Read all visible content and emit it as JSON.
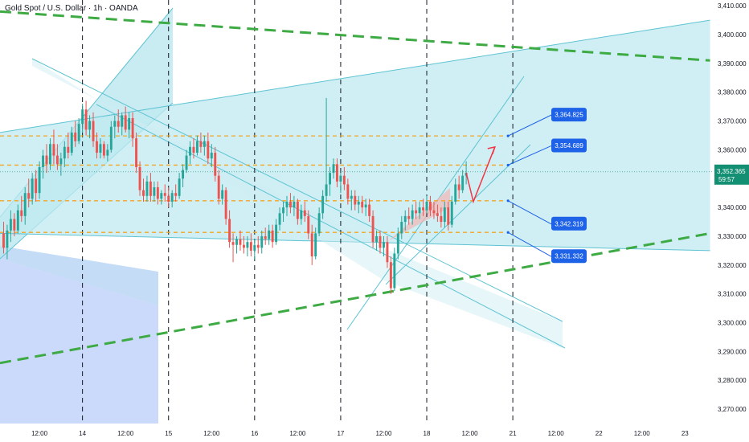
{
  "header": {
    "title": "Gold Spot / U.S. Dollar · 1h · OANDA"
  },
  "chart_data": {
    "type": "candlestick",
    "ylim": [
      3265,
      3412
    ],
    "y_ticks": [
      3270,
      3280,
      3290,
      3300,
      3310,
      3320,
      3330,
      3340,
      3350,
      3360,
      3370,
      3380,
      3390,
      3400,
      3410
    ],
    "y_tick_labels": [
      "3,270.000",
      "3,280.000",
      "3,290.000",
      "3,300.000",
      "3,310.000",
      "3,320.000",
      "3,330.000",
      "3,340.000",
      "3,350.000",
      "3,360.000",
      "3,370.000",
      "3,380.000",
      "3,390.000",
      "3,400.000",
      "3,410.000"
    ],
    "x_ticks": [
      {
        "t": -12,
        "label": "12:00"
      },
      {
        "t": 0,
        "label": "14"
      },
      {
        "t": 12,
        "label": "12:00"
      },
      {
        "t": 24,
        "label": "15"
      },
      {
        "t": 36,
        "label": "12:00"
      },
      {
        "t": 48,
        "label": "16"
      },
      {
        "t": 60,
        "label": "12:00"
      },
      {
        "t": 72,
        "label": "17"
      },
      {
        "t": 84,
        "label": "12:00"
      },
      {
        "t": 96,
        "label": "18"
      },
      {
        "t": 108,
        "label": "12:00"
      },
      {
        "t": 120,
        "label": "21"
      },
      {
        "t": 132,
        "label": "12:00"
      },
      {
        "t": 144,
        "label": "22"
      },
      {
        "t": 156,
        "label": "12:00"
      },
      {
        "t": 168,
        "label": "23"
      }
    ],
    "xlim": [
      -23,
      176
    ],
    "current_price": {
      "value": 3352.365,
      "label": "3,352.365",
      "countdown": "59:57"
    },
    "levels": [
      {
        "value": 3364.825,
        "label": "3,364.825"
      },
      {
        "value": 3354.689,
        "label": "3,354.689"
      },
      {
        "value": 3342.319,
        "label": "3,342.319"
      },
      {
        "value": 3331.332,
        "label": "3,331.332"
      }
    ],
    "session_lines_t": [
      0,
      24,
      48,
      72,
      96,
      120
    ],
    "candles": [
      {
        "t": -22,
        "o": 3331,
        "h": 3335,
        "l": 3324,
        "c": 3326
      },
      {
        "t": -21,
        "o": 3326,
        "h": 3334,
        "l": 3322,
        "c": 3332
      },
      {
        "t": -20,
        "o": 3332,
        "h": 3339,
        "l": 3328,
        "c": 3336
      },
      {
        "t": -19,
        "o": 3336,
        "h": 3338,
        "l": 3330,
        "c": 3332
      },
      {
        "t": -18,
        "o": 3332,
        "h": 3341,
        "l": 3331,
        "c": 3339
      },
      {
        "t": -17,
        "o": 3339,
        "h": 3344,
        "l": 3335,
        "c": 3337
      },
      {
        "t": -16,
        "o": 3337,
        "h": 3347,
        "l": 3334,
        "c": 3345
      },
      {
        "t": -15,
        "o": 3345,
        "h": 3350,
        "l": 3340,
        "c": 3343
      },
      {
        "t": -14,
        "o": 3343,
        "h": 3352,
        "l": 3341,
        "c": 3350
      },
      {
        "t": -13,
        "o": 3350,
        "h": 3353,
        "l": 3342,
        "c": 3345
      },
      {
        "t": -12,
        "o": 3345,
        "h": 3356,
        "l": 3343,
        "c": 3354
      },
      {
        "t": -11,
        "o": 3354,
        "h": 3360,
        "l": 3350,
        "c": 3358
      },
      {
        "t": -10,
        "o": 3358,
        "h": 3362,
        "l": 3352,
        "c": 3355
      },
      {
        "t": -9,
        "o": 3355,
        "h": 3364,
        "l": 3353,
        "c": 3362
      },
      {
        "t": -8,
        "o": 3362,
        "h": 3367,
        "l": 3355,
        "c": 3358
      },
      {
        "t": -7,
        "o": 3358,
        "h": 3362,
        "l": 3353,
        "c": 3355
      },
      {
        "t": -6,
        "o": 3355,
        "h": 3359,
        "l": 3351,
        "c": 3357
      },
      {
        "t": -5,
        "o": 3357,
        "h": 3363,
        "l": 3354,
        "c": 3361
      },
      {
        "t": -4,
        "o": 3361,
        "h": 3366,
        "l": 3357,
        "c": 3359
      },
      {
        "t": -3,
        "o": 3359,
        "h": 3368,
        "l": 3358,
        "c": 3366
      },
      {
        "t": -2,
        "o": 3366,
        "h": 3370,
        "l": 3361,
        "c": 3363
      },
      {
        "t": -1,
        "o": 3363,
        "h": 3371,
        "l": 3362,
        "c": 3369
      },
      {
        "t": 0,
        "o": 3369,
        "h": 3376,
        "l": 3366,
        "c": 3374
      },
      {
        "t": 1,
        "o": 3374,
        "h": 3377,
        "l": 3365,
        "c": 3367
      },
      {
        "t": 2,
        "o": 3367,
        "h": 3372,
        "l": 3364,
        "c": 3370
      },
      {
        "t": 3,
        "o": 3370,
        "h": 3373,
        "l": 3361,
        "c": 3363
      },
      {
        "t": 4,
        "o": 3363,
        "h": 3366,
        "l": 3357,
        "c": 3359
      },
      {
        "t": 5,
        "o": 3359,
        "h": 3364,
        "l": 3357,
        "c": 3362
      },
      {
        "t": 6,
        "o": 3362,
        "h": 3363,
        "l": 3357,
        "c": 3358
      },
      {
        "t": 7,
        "o": 3358,
        "h": 3362,
        "l": 3356,
        "c": 3360
      },
      {
        "t": 8,
        "o": 3360,
        "h": 3370,
        "l": 3359,
        "c": 3368
      },
      {
        "t": 9,
        "o": 3368,
        "h": 3372,
        "l": 3364,
        "c": 3370
      },
      {
        "t": 10,
        "o": 3370,
        "h": 3374,
        "l": 3366,
        "c": 3368
      },
      {
        "t": 11,
        "o": 3368,
        "h": 3373,
        "l": 3365,
        "c": 3372
      },
      {
        "t": 12,
        "o": 3372,
        "h": 3375,
        "l": 3366,
        "c": 3367
      },
      {
        "t": 13,
        "o": 3367,
        "h": 3373,
        "l": 3364,
        "c": 3371
      },
      {
        "t": 14,
        "o": 3371,
        "h": 3373,
        "l": 3361,
        "c": 3364
      },
      {
        "t": 15,
        "o": 3364,
        "h": 3366,
        "l": 3352,
        "c": 3354
      },
      {
        "t": 16,
        "o": 3354,
        "h": 3356,
        "l": 3344,
        "c": 3346
      },
      {
        "t": 17,
        "o": 3346,
        "h": 3350,
        "l": 3342,
        "c": 3344
      },
      {
        "t": 18,
        "o": 3344,
        "h": 3351,
        "l": 3342,
        "c": 3349
      },
      {
        "t": 19,
        "o": 3349,
        "h": 3352,
        "l": 3342,
        "c": 3344
      },
      {
        "t": 20,
        "o": 3344,
        "h": 3349,
        "l": 3342,
        "c": 3347
      },
      {
        "t": 21,
        "o": 3347,
        "h": 3349,
        "l": 3341,
        "c": 3343
      },
      {
        "t": 22,
        "o": 3343,
        "h": 3346,
        "l": 3341,
        "c": 3345
      },
      {
        "t": 23,
        "o": 3345,
        "h": 3348,
        "l": 3342,
        "c": 3344
      },
      {
        "t": 24,
        "o": 3344,
        "h": 3347,
        "l": 3340,
        "c": 3342
      },
      {
        "t": 25,
        "o": 3342,
        "h": 3346,
        "l": 3340,
        "c": 3345
      },
      {
        "t": 26,
        "o": 3345,
        "h": 3348,
        "l": 3342,
        "c": 3344
      },
      {
        "t": 27,
        "o": 3344,
        "h": 3352,
        "l": 3343,
        "c": 3350
      },
      {
        "t": 28,
        "o": 3350,
        "h": 3355,
        "l": 3347,
        "c": 3353
      },
      {
        "t": 29,
        "o": 3353,
        "h": 3360,
        "l": 3352,
        "c": 3358
      },
      {
        "t": 30,
        "o": 3358,
        "h": 3363,
        "l": 3355,
        "c": 3361
      },
      {
        "t": 31,
        "o": 3361,
        "h": 3364,
        "l": 3357,
        "c": 3359
      },
      {
        "t": 32,
        "o": 3359,
        "h": 3365,
        "l": 3358,
        "c": 3363
      },
      {
        "t": 33,
        "o": 3363,
        "h": 3366,
        "l": 3359,
        "c": 3361
      },
      {
        "t": 34,
        "o": 3361,
        "h": 3365,
        "l": 3358,
        "c": 3363
      },
      {
        "t": 35,
        "o": 3363,
        "h": 3366,
        "l": 3355,
        "c": 3357
      },
      {
        "t": 36,
        "o": 3357,
        "h": 3362,
        "l": 3354,
        "c": 3359
      },
      {
        "t": 37,
        "o": 3359,
        "h": 3361,
        "l": 3349,
        "c": 3351
      },
      {
        "t": 38,
        "o": 3351,
        "h": 3353,
        "l": 3341,
        "c": 3343
      },
      {
        "t": 39,
        "o": 3343,
        "h": 3348,
        "l": 3341,
        "c": 3346
      },
      {
        "t": 40,
        "o": 3346,
        "h": 3347,
        "l": 3334,
        "c": 3336
      },
      {
        "t": 41,
        "o": 3336,
        "h": 3339,
        "l": 3326,
        "c": 3328
      },
      {
        "t": 42,
        "o": 3328,
        "h": 3331,
        "l": 3321,
        "c": 3327
      },
      {
        "t": 43,
        "o": 3327,
        "h": 3330,
        "l": 3324,
        "c": 3329
      },
      {
        "t": 44,
        "o": 3329,
        "h": 3332,
        "l": 3325,
        "c": 3327
      },
      {
        "t": 45,
        "o": 3327,
        "h": 3330,
        "l": 3324,
        "c": 3326
      },
      {
        "t": 46,
        "o": 3326,
        "h": 3330,
        "l": 3323,
        "c": 3328
      },
      {
        "t": 47,
        "o": 3328,
        "h": 3331,
        "l": 3323,
        "c": 3325
      },
      {
        "t": 48,
        "o": 3325,
        "h": 3329,
        "l": 3322,
        "c": 3327
      },
      {
        "t": 49,
        "o": 3327,
        "h": 3330,
        "l": 3324,
        "c": 3326
      },
      {
        "t": 50,
        "o": 3326,
        "h": 3332,
        "l": 3324,
        "c": 3330
      },
      {
        "t": 51,
        "o": 3330,
        "h": 3333,
        "l": 3327,
        "c": 3329
      },
      {
        "t": 52,
        "o": 3329,
        "h": 3334,
        "l": 3327,
        "c": 3332
      },
      {
        "t": 53,
        "o": 3332,
        "h": 3334,
        "l": 3326,
        "c": 3328
      },
      {
        "t": 54,
        "o": 3328,
        "h": 3336,
        "l": 3327,
        "c": 3334
      },
      {
        "t": 55,
        "o": 3334,
        "h": 3340,
        "l": 3332,
        "c": 3338
      },
      {
        "t": 56,
        "o": 3338,
        "h": 3342,
        "l": 3335,
        "c": 3340
      },
      {
        "t": 57,
        "o": 3340,
        "h": 3344,
        "l": 3337,
        "c": 3342
      },
      {
        "t": 58,
        "o": 3342,
        "h": 3345,
        "l": 3338,
        "c": 3340
      },
      {
        "t": 59,
        "o": 3340,
        "h": 3344,
        "l": 3337,
        "c": 3342
      },
      {
        "t": 60,
        "o": 3342,
        "h": 3343,
        "l": 3334,
        "c": 3336
      },
      {
        "t": 61,
        "o": 3336,
        "h": 3341,
        "l": 3334,
        "c": 3339
      },
      {
        "t": 62,
        "o": 3339,
        "h": 3342,
        "l": 3335,
        "c": 3337
      },
      {
        "t": 63,
        "o": 3337,
        "h": 3339,
        "l": 3329,
        "c": 3331
      },
      {
        "t": 64,
        "o": 3331,
        "h": 3334,
        "l": 3320,
        "c": 3323
      },
      {
        "t": 65,
        "o": 3323,
        "h": 3333,
        "l": 3322,
        "c": 3331
      },
      {
        "t": 66,
        "o": 3331,
        "h": 3340,
        "l": 3330,
        "c": 3338
      },
      {
        "t": 67,
        "o": 3338,
        "h": 3346,
        "l": 3336,
        "c": 3344
      },
      {
        "t": 68,
        "o": 3344,
        "h": 3378,
        "l": 3342,
        "c": 3348
      },
      {
        "t": 69,
        "o": 3348,
        "h": 3354,
        "l": 3344,
        "c": 3352
      },
      {
        "t": 70,
        "o": 3352,
        "h": 3357,
        "l": 3350,
        "c": 3355
      },
      {
        "t": 71,
        "o": 3355,
        "h": 3357,
        "l": 3347,
        "c": 3349
      },
      {
        "t": 72,
        "o": 3349,
        "h": 3352,
        "l": 3345,
        "c": 3351
      },
      {
        "t": 73,
        "o": 3351,
        "h": 3354,
        "l": 3346,
        "c": 3348
      },
      {
        "t": 74,
        "o": 3348,
        "h": 3350,
        "l": 3341,
        "c": 3343
      },
      {
        "t": 75,
        "o": 3343,
        "h": 3346,
        "l": 3339,
        "c": 3344
      },
      {
        "t": 76,
        "o": 3344,
        "h": 3346,
        "l": 3339,
        "c": 3341
      },
      {
        "t": 77,
        "o": 3341,
        "h": 3344,
        "l": 3338,
        "c": 3342
      },
      {
        "t": 78,
        "o": 3342,
        "h": 3344,
        "l": 3338,
        "c": 3340
      },
      {
        "t": 79,
        "o": 3340,
        "h": 3343,
        "l": 3337,
        "c": 3341
      },
      {
        "t": 80,
        "o": 3341,
        "h": 3343,
        "l": 3335,
        "c": 3337
      },
      {
        "t": 81,
        "o": 3337,
        "h": 3339,
        "l": 3326,
        "c": 3328
      },
      {
        "t": 82,
        "o": 3328,
        "h": 3332,
        "l": 3325,
        "c": 3330
      },
      {
        "t": 83,
        "o": 3330,
        "h": 3332,
        "l": 3324,
        "c": 3326
      },
      {
        "t": 84,
        "o": 3326,
        "h": 3330,
        "l": 3323,
        "c": 3328
      },
      {
        "t": 85,
        "o": 3328,
        "h": 3330,
        "l": 3319,
        "c": 3321
      },
      {
        "t": 86,
        "o": 3321,
        "h": 3323,
        "l": 3310,
        "c": 3312
      },
      {
        "t": 87,
        "o": 3312,
        "h": 3326,
        "l": 3311,
        "c": 3324
      },
      {
        "t": 88,
        "o": 3324,
        "h": 3333,
        "l": 3322,
        "c": 3331
      },
      {
        "t": 89,
        "o": 3331,
        "h": 3337,
        "l": 3329,
        "c": 3335
      },
      {
        "t": 90,
        "o": 3335,
        "h": 3339,
        "l": 3332,
        "c": 3337
      },
      {
        "t": 91,
        "o": 3337,
        "h": 3340,
        "l": 3334,
        "c": 3336
      },
      {
        "t": 92,
        "o": 3336,
        "h": 3341,
        "l": 3334,
        "c": 3339
      },
      {
        "t": 93,
        "o": 3339,
        "h": 3342,
        "l": 3336,
        "c": 3338
      },
      {
        "t": 94,
        "o": 3338,
        "h": 3342,
        "l": 3336,
        "c": 3340
      },
      {
        "t": 95,
        "o": 3340,
        "h": 3343,
        "l": 3337,
        "c": 3339
      },
      {
        "t": 96,
        "o": 3339,
        "h": 3344,
        "l": 3338,
        "c": 3342
      },
      {
        "t": 97,
        "o": 3342,
        "h": 3344,
        "l": 3337,
        "c": 3339
      },
      {
        "t": 98,
        "o": 3339,
        "h": 3342,
        "l": 3336,
        "c": 3338
      },
      {
        "t": 99,
        "o": 3338,
        "h": 3341,
        "l": 3335,
        "c": 3337
      },
      {
        "t": 100,
        "o": 3337,
        "h": 3340,
        "l": 3333,
        "c": 3335
      },
      {
        "t": 101,
        "o": 3335,
        "h": 3342,
        "l": 3333,
        "c": 3340
      },
      {
        "t": 102,
        "o": 3340,
        "h": 3342,
        "l": 3332,
        "c": 3334
      },
      {
        "t": 103,
        "o": 3334,
        "h": 3344,
        "l": 3333,
        "c": 3342
      },
      {
        "t": 104,
        "o": 3342,
        "h": 3350,
        "l": 3341,
        "c": 3348
      },
      {
        "t": 105,
        "o": 3348,
        "h": 3351,
        "l": 3343,
        "c": 3346
      },
      {
        "t": 106,
        "o": 3346,
        "h": 3353,
        "l": 3345,
        "c": 3351
      },
      {
        "t": 107,
        "o": 3351,
        "h": 3356,
        "l": 3348,
        "c": 3352
      }
    ],
    "projection": [
      {
        "t": 107,
        "v": 3352
      },
      {
        "t": 109,
        "v": 3342
      },
      {
        "t": 115,
        "v": 3361
      }
    ],
    "dashed_lines": [
      {
        "name": "upper-trendline",
        "t0": -23,
        "v0": 3408,
        "t1": 175,
        "v1": 3391
      },
      {
        "name": "lower-trendline",
        "t0": -23,
        "v0": 3286,
        "t1": 175,
        "v1": 3331
      }
    ],
    "channels": [
      {
        "name": "main-rising-channel",
        "upper": [
          [
            -23,
            3366
          ],
          [
            175,
            3405
          ]
        ],
        "lower": [
          [
            -23,
            3331
          ],
          [
            175,
            3325
          ]
        ],
        "fill": "#bfeaf0"
      }
    ],
    "colors": {
      "up": "#26a69a",
      "down": "#ef5350",
      "channel_fill": "#b7e6ee",
      "channel_line": "#5ec3d2",
      "level": "#f5a623",
      "dashed_green": "#3daa44",
      "callout": "#1e62e8",
      "price_tag": "#138f73",
      "blue_box": "#c5d6fb"
    }
  }
}
